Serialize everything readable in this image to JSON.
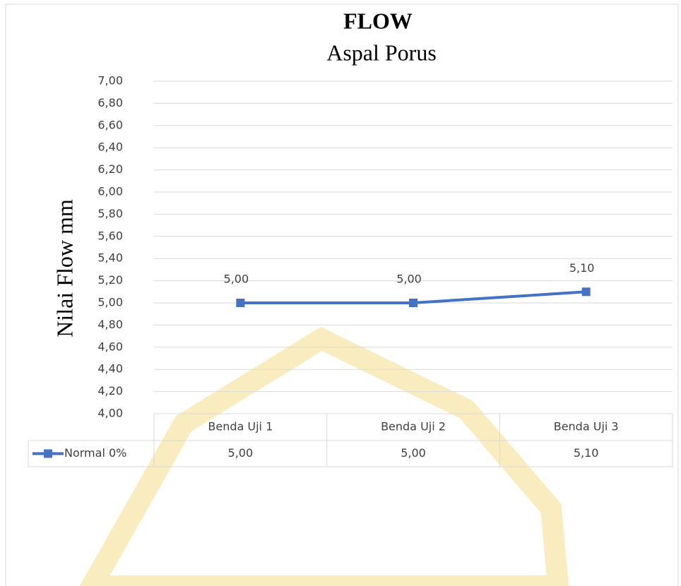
{
  "chart_data": {
    "type": "line",
    "title": "FLOW",
    "subtitle": "Aspal Porus",
    "y_label": "Nilai Flow mm",
    "categories": [
      "Benda Uji 1",
      "Benda Uji 2",
      "Benda Uji 3"
    ],
    "series": [
      {
        "name": "Normal 0%",
        "color": "#4472c4",
        "values": [
          5.0,
          5.0,
          5.1
        ],
        "value_labels": [
          "5,00",
          "5,00",
          "5,10"
        ]
      }
    ],
    "ylim": [
      4,
      7
    ],
    "yticks": [
      {
        "value": 4,
        "label": "4,00"
      },
      {
        "value": 4.2,
        "label": "4,20"
      },
      {
        "value": 4.4,
        "label": "4,40"
      },
      {
        "value": 4.6,
        "label": "4,60"
      },
      {
        "value": 4.8,
        "label": "4,80"
      },
      {
        "value": 5,
        "label": "5,00"
      },
      {
        "value": 5.2,
        "label": "5,20"
      },
      {
        "value": 5.4,
        "label": "5,40"
      },
      {
        "value": 5.6,
        "label": "5,60"
      },
      {
        "value": 5.8,
        "label": "5,80"
      },
      {
        "value": 6,
        "label": "6,00"
      },
      {
        "value": 6.2,
        "label": "6,20"
      },
      {
        "value": 6.4,
        "label": "6,40"
      },
      {
        "value": 6.6,
        "label": "6,60"
      },
      {
        "value": 6.8,
        "label": "6,80"
      },
      {
        "value": 7,
        "label": "7,00"
      }
    ],
    "grid": true,
    "data_table": true
  }
}
